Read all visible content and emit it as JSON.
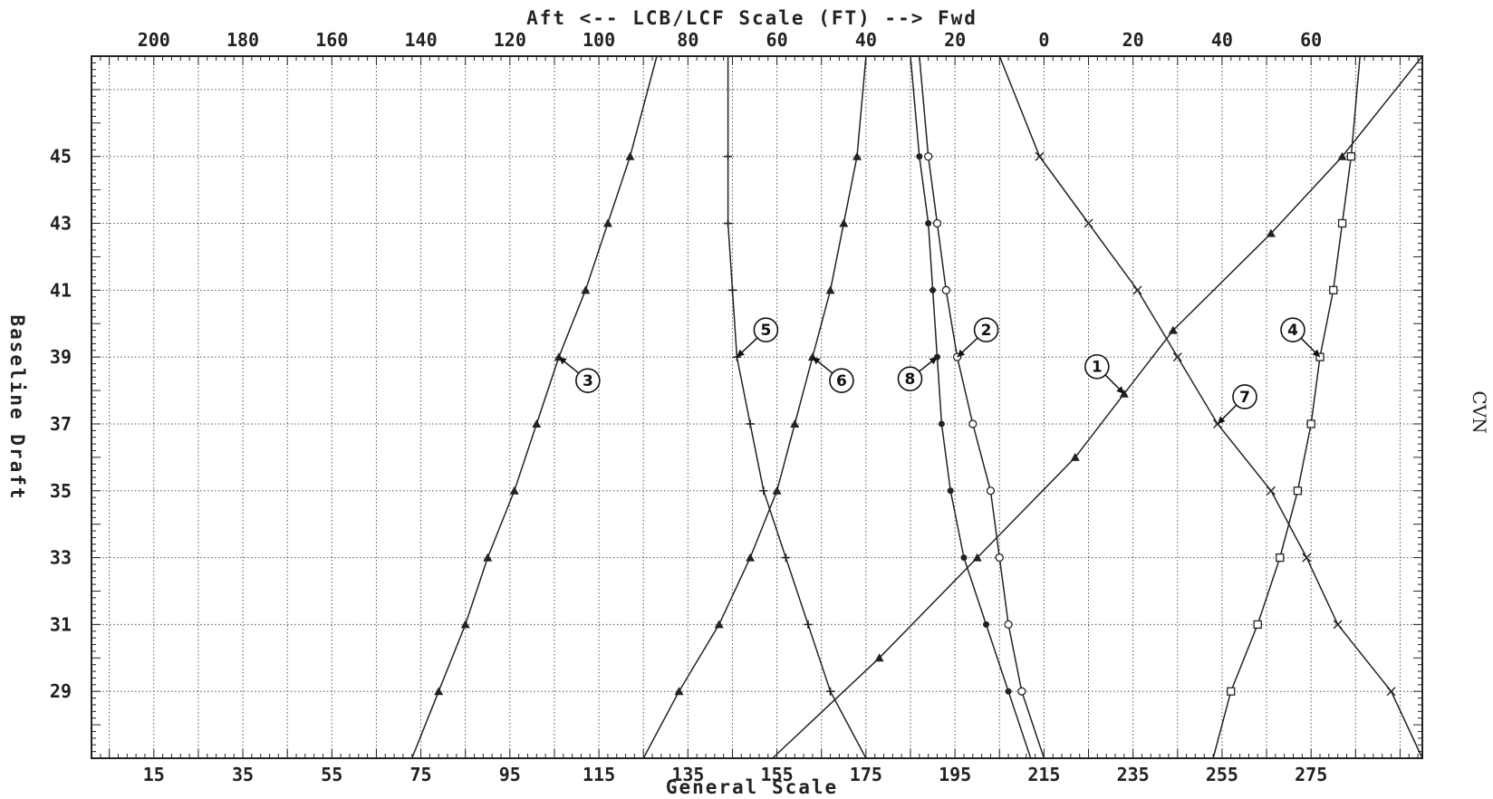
{
  "chart_data": {
    "type": "line",
    "title": "",
    "top_axis_label": "Aft <-- LCB/LCF Scale (FT) --> Fwd",
    "xlabel": "General Scale",
    "ylabel": "Baseline Draft",
    "side_label": "CVN",
    "xlim": [
      1,
      300
    ],
    "ylim": [
      27,
      48
    ],
    "top_scale_mapping": {
      "general_at_zero": 215,
      "general_per_foot": -1,
      "note_fwd_positive": true
    },
    "x_ticks": [
      15,
      35,
      55,
      75,
      95,
      115,
      135,
      155,
      175,
      195,
      215,
      235,
      255,
      275
    ],
    "y_ticks": [
      29,
      31,
      33,
      35,
      37,
      39,
      41,
      43,
      45
    ],
    "top_ticks": [
      {
        "label": "200",
        "general": 15
      },
      {
        "label": "180",
        "general": 35
      },
      {
        "label": "160",
        "general": 55
      },
      {
        "label": "140",
        "general": 75
      },
      {
        "label": "120",
        "general": 95
      },
      {
        "label": "100",
        "general": 115
      },
      {
        "label": "80",
        "general": 135
      },
      {
        "label": "60",
        "general": 155
      },
      {
        "label": "40",
        "general": 175
      },
      {
        "label": "20",
        "general": 195
      },
      {
        "label": "0",
        "general": 215
      },
      {
        "label": "20",
        "general": 235
      },
      {
        "label": "40",
        "general": 255
      },
      {
        "label": "60",
        "general": 275
      }
    ],
    "grid": true,
    "series": [
      {
        "name": "1",
        "marker": "triangle",
        "points": [
          [
            154,
            27
          ],
          [
            178,
            30
          ],
          [
            200,
            33
          ],
          [
            222,
            36
          ],
          [
            233,
            37.9
          ],
          [
            244,
            39.8
          ],
          [
            266,
            42.7
          ],
          [
            282,
            45
          ],
          [
            300,
            48
          ]
        ]
      },
      {
        "name": "2",
        "marker": "o",
        "points": [
          [
            215,
            27
          ],
          [
            210,
            29
          ],
          [
            207,
            31
          ],
          [
            205,
            33
          ],
          [
            203,
            35
          ],
          [
            199,
            37
          ],
          [
            195.5,
            39
          ],
          [
            193,
            41
          ],
          [
            191,
            43
          ],
          [
            189,
            45
          ],
          [
            187,
            48
          ]
        ]
      },
      {
        "name": "3",
        "marker": "triangle",
        "points": [
          [
            73,
            27
          ],
          [
            79,
            29
          ],
          [
            85,
            31
          ],
          [
            90,
            33
          ],
          [
            96,
            35
          ],
          [
            101,
            37
          ],
          [
            106,
            39
          ],
          [
            112,
            41
          ],
          [
            117,
            43
          ],
          [
            122,
            45
          ],
          [
            128,
            48
          ]
        ]
      },
      {
        "name": "4",
        "marker": "square",
        "points": [
          [
            253,
            27
          ],
          [
            257,
            29
          ],
          [
            263,
            31
          ],
          [
            268,
            33
          ],
          [
            272,
            35
          ],
          [
            275,
            37
          ],
          [
            277,
            39
          ],
          [
            280,
            41
          ],
          [
            282,
            43
          ],
          [
            284,
            45
          ],
          [
            286,
            48
          ]
        ]
      },
      {
        "name": "5",
        "marker": "+",
        "points": [
          [
            175,
            27
          ],
          [
            167,
            29
          ],
          [
            162,
            31
          ],
          [
            157,
            33
          ],
          [
            152,
            35
          ],
          [
            149,
            37
          ],
          [
            146,
            39
          ],
          [
            145,
            41
          ],
          [
            144,
            43
          ],
          [
            144,
            45
          ],
          [
            144,
            48
          ]
        ]
      },
      {
        "name": "6",
        "marker": "triangle",
        "points": [
          [
            125,
            27
          ],
          [
            133,
            29
          ],
          [
            142,
            31
          ],
          [
            149,
            33
          ],
          [
            155,
            35
          ],
          [
            159,
            37
          ],
          [
            163,
            39
          ],
          [
            167,
            41
          ],
          [
            170,
            43
          ],
          [
            173,
            45
          ],
          [
            175,
            48
          ]
        ]
      },
      {
        "name": "7",
        "marker": "x",
        "points": [
          [
            300,
            27
          ],
          [
            293,
            29
          ],
          [
            281,
            31
          ],
          [
            274,
            33
          ],
          [
            266,
            35
          ],
          [
            254,
            37
          ],
          [
            245,
            39
          ],
          [
            236,
            41
          ],
          [
            225,
            43
          ],
          [
            214,
            45
          ],
          [
            205,
            48
          ]
        ]
      },
      {
        "name": "8",
        "marker": "circle-plus",
        "points": [
          [
            212,
            27
          ],
          [
            207,
            29
          ],
          [
            202,
            31
          ],
          [
            197,
            33
          ],
          [
            194,
            35
          ],
          [
            192,
            37
          ],
          [
            191,
            39
          ],
          [
            190,
            41
          ],
          [
            189,
            43
          ],
          [
            187,
            45
          ],
          [
            185,
            48
          ]
        ]
      }
    ],
    "callouts": [
      {
        "label": "1",
        "series": "1",
        "anchor": [
          233,
          37.9
        ]
      },
      {
        "label": "2",
        "series": "2",
        "anchor": [
          195.5,
          39
        ]
      },
      {
        "label": "3",
        "series": "3",
        "anchor": [
          106,
          39
        ]
      },
      {
        "label": "4",
        "series": "4",
        "anchor": [
          277,
          39
        ]
      },
      {
        "label": "5",
        "series": "5",
        "anchor": [
          146,
          39
        ]
      },
      {
        "label": "6",
        "series": "6",
        "anchor": [
          163,
          39
        ]
      },
      {
        "label": "7",
        "series": "7",
        "anchor": [
          254,
          37
        ]
      },
      {
        "label": "8",
        "series": "8",
        "anchor": [
          191,
          39
        ]
      }
    ]
  }
}
